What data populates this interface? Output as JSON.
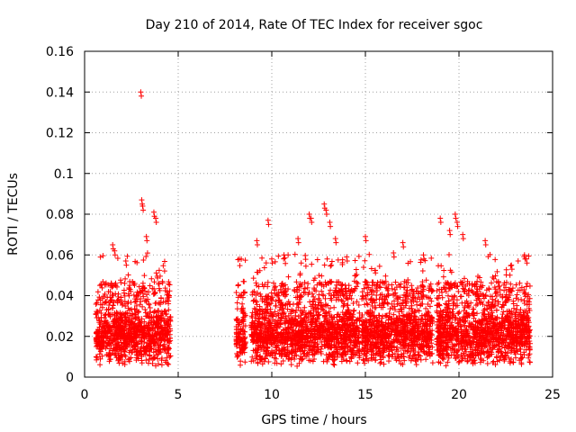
{
  "chart_data": {
    "type": "scatter",
    "title": "Day 210 of 2014, Rate Of TEC Index for receiver sgoc",
    "xlabel": "GPS time / hours",
    "ylabel": "ROTI / TECUs",
    "xlim": [
      0,
      25
    ],
    "ylim": [
      0,
      0.16
    ],
    "xticks": [
      "0",
      "5",
      "10",
      "15",
      "20",
      "25"
    ],
    "yticks": [
      "0",
      "0.02",
      "0.04",
      "0.06",
      "0.08",
      "0.1",
      "0.12",
      "0.14",
      "0.16"
    ],
    "grid": true,
    "marker": "+",
    "color": "#ff0000",
    "series": [
      {
        "name": "ROTI",
        "segments": [
          {
            "x_start": 0.6,
            "x_end": 4.6,
            "y_typical": [
              0.005,
              0.035
            ]
          },
          {
            "x_start": 8.1,
            "x_end": 8.6,
            "y_typical": [
              0.005,
              0.035
            ]
          },
          {
            "x_start": 8.9,
            "x_end": 14.7,
            "y_typical": [
              0.005,
              0.035
            ]
          },
          {
            "x_start": 14.8,
            "x_end": 18.6,
            "y_typical": [
              0.005,
              0.035
            ]
          },
          {
            "x_start": 18.8,
            "x_end": 23.8,
            "y_typical": [
              0.005,
              0.035
            ]
          }
        ],
        "peaks": [
          {
            "x": 3.0,
            "y": 0.14
          },
          {
            "x": 3.05,
            "y": 0.087
          },
          {
            "x": 3.1,
            "y": 0.084
          },
          {
            "x": 3.7,
            "y": 0.081
          },
          {
            "x": 3.8,
            "y": 0.078
          },
          {
            "x": 3.3,
            "y": 0.069
          },
          {
            "x": 1.5,
            "y": 0.065
          },
          {
            "x": 1.6,
            "y": 0.062
          },
          {
            "x": 2.2,
            "y": 0.057
          },
          {
            "x": 9.8,
            "y": 0.077
          },
          {
            "x": 9.2,
            "y": 0.067
          },
          {
            "x": 10.0,
            "y": 0.058
          },
          {
            "x": 11.4,
            "y": 0.068
          },
          {
            "x": 12.0,
            "y": 0.08
          },
          {
            "x": 12.1,
            "y": 0.078
          },
          {
            "x": 12.8,
            "y": 0.085
          },
          {
            "x": 12.9,
            "y": 0.082
          },
          {
            "x": 13.1,
            "y": 0.076
          },
          {
            "x": 13.4,
            "y": 0.068
          },
          {
            "x": 14.0,
            "y": 0.059
          },
          {
            "x": 15.0,
            "y": 0.069
          },
          {
            "x": 16.5,
            "y": 0.061
          },
          {
            "x": 18.1,
            "y": 0.06
          },
          {
            "x": 19.0,
            "y": 0.078
          },
          {
            "x": 19.5,
            "y": 0.072
          },
          {
            "x": 19.8,
            "y": 0.08
          },
          {
            "x": 19.9,
            "y": 0.076
          },
          {
            "x": 20.2,
            "y": 0.07
          },
          {
            "x": 21.4,
            "y": 0.067
          },
          {
            "x": 17.0,
            "y": 0.066
          },
          {
            "x": 23.5,
            "y": 0.06
          },
          {
            "x": 23.6,
            "y": 0.058
          },
          {
            "x": 22.8,
            "y": 0.055
          }
        ]
      }
    ]
  }
}
